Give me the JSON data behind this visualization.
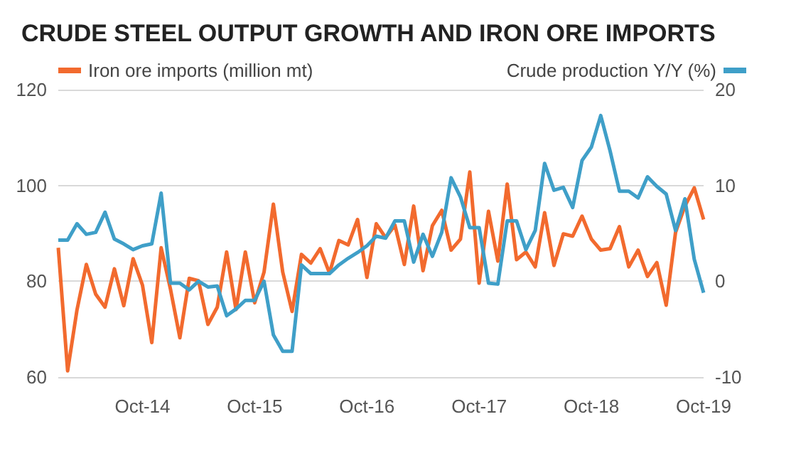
{
  "chart_data": {
    "type": "line",
    "title": "CRUDE STEEL OUTPUT GROWTH AND IRON ORE IMPORTS",
    "categories": [
      null,
      null,
      null,
      null,
      null,
      null,
      null,
      null,
      null,
      "Oct-14",
      null,
      null,
      null,
      null,
      null,
      null,
      null,
      null,
      null,
      null,
      null,
      "Oct-15",
      null,
      null,
      null,
      null,
      null,
      null,
      null,
      null,
      null,
      null,
      null,
      "Oct-16",
      null,
      null,
      null,
      null,
      null,
      null,
      null,
      null,
      null,
      null,
      null,
      "Oct-17",
      null,
      null,
      null,
      null,
      null,
      null,
      null,
      null,
      null,
      null,
      null,
      "Oct-18",
      null,
      null,
      null,
      null,
      null,
      null,
      null,
      null,
      null,
      null,
      null,
      "Oct-19"
    ],
    "series": [
      {
        "name": "Iron ore imports (million mt)",
        "color": "#f26a2e",
        "values": [
          87,
          61.3,
          74,
          83.5,
          77.3,
          74.6,
          82.6,
          74.9,
          84.7,
          79.2,
          67.2,
          87,
          78.3,
          68.2,
          80.6,
          80.1,
          71,
          74.6,
          86.1,
          74.1,
          86.1,
          75.5,
          81.9,
          96.1,
          81.9,
          73.7,
          85.6,
          83.8,
          86.8,
          81.7,
          88.5,
          87.6,
          92.9,
          80.8,
          92,
          89.1,
          91.7,
          83.5,
          95.7,
          82.2,
          91.6,
          94.8,
          86.5,
          88.8,
          102.8,
          79.6,
          94.6,
          84.2,
          100.3,
          84.5,
          86.1,
          83,
          94.3,
          83.3,
          89.9,
          89.4,
          93.6,
          88.8,
          86.5,
          86.8,
          91.4,
          83,
          86.5,
          81,
          83.9,
          75,
          90.2,
          95.7,
          99.5,
          92.9
        ]
      },
      {
        "name": "Crude production Y/Y (%)",
        "color": "#3f9fc8",
        "axis": "y2",
        "values": [
          4.3,
          4.3,
          6,
          4.9,
          5.1,
          7.2,
          4.4,
          3.9,
          3.3,
          3.7,
          3.9,
          9.2,
          -0.2,
          -0.2,
          -0.9,
          0,
          -0.6,
          -0.5,
          -3.6,
          -2.9,
          -2,
          -2,
          0,
          -5.6,
          -7.3,
          -7.3,
          1.7,
          0.8,
          0.8,
          0.8,
          1.7,
          2.4,
          3,
          3.7,
          4.7,
          4.5,
          6.3,
          6.3,
          2,
          4.9,
          2.6,
          5.1,
          10.8,
          8.8,
          5.6,
          5.6,
          -0.2,
          -0.3,
          6.3,
          6.3,
          3.3,
          5.3,
          12.3,
          9.5,
          9.8,
          7.7,
          12.6,
          14,
          17.3,
          13.6,
          9.4,
          9.4,
          8.7,
          10.9,
          9.9,
          9.1,
          5.3,
          8.6,
          2.3,
          -1.2
        ]
      }
    ],
    "ylim": [
      60,
      120
    ],
    "yticks": [
      60,
      80,
      100,
      120
    ],
    "y2lim": [
      -10,
      20
    ],
    "y2ticks": [
      -10,
      0,
      10,
      20
    ],
    "grid": "y",
    "legend": "top",
    "marker": "none",
    "line_style": "solid"
  }
}
